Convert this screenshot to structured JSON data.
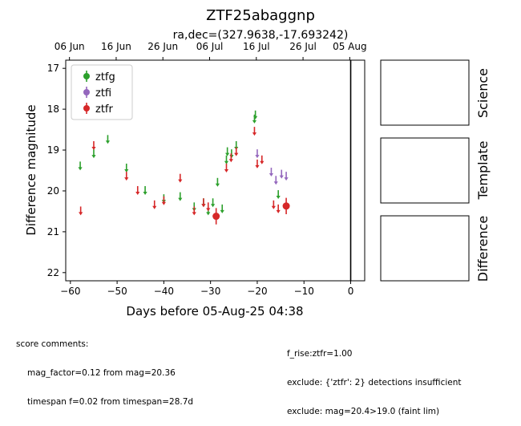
{
  "chart_data": {
    "type": "scatter",
    "title": "ZTF25abaggnp",
    "subtitle": "ra,dec=(327.9638,-17.693242)",
    "xlabel": "Days before 05-Aug-25 04:38",
    "ylabel": "Difference magnitude",
    "xlim": [
      -61,
      3
    ],
    "ylim": [
      22.2,
      16.8
    ],
    "x_ticks": [
      -60,
      -50,
      -40,
      -30,
      -20,
      -10,
      0
    ],
    "y_ticks": [
      17,
      18,
      19,
      20,
      21,
      22
    ],
    "top_axis_ticks": [
      {
        "x": -60.2,
        "label": "06 Jun"
      },
      {
        "x": -50.2,
        "label": "16 Jun"
      },
      {
        "x": -40.2,
        "label": "26 Jun"
      },
      {
        "x": -30.2,
        "label": "06 Jul"
      },
      {
        "x": -20.2,
        "label": "16 Jul"
      },
      {
        "x": -10.2,
        "label": "26 Jul"
      },
      {
        "x": -0.2,
        "label": "05 Aug"
      }
    ],
    "vline_x": 0,
    "legend_position": "upper-left",
    "series": [
      {
        "name": "ztfg",
        "color": "#2ca02c",
        "upper_limits": [
          {
            "x": -57.9,
            "y": 19.4
          },
          {
            "x": -55.0,
            "y": 19.1
          },
          {
            "x": -52.0,
            "y": 18.75
          },
          {
            "x": -48.0,
            "y": 19.45
          },
          {
            "x": -44.0,
            "y": 20.0
          },
          {
            "x": -40.0,
            "y": 20.2
          },
          {
            "x": -36.5,
            "y": 20.15
          },
          {
            "x": -33.5,
            "y": 20.4
          },
          {
            "x": -31.5,
            "y": 20.3
          },
          {
            "x": -30.5,
            "y": 20.5
          },
          {
            "x": -29.5,
            "y": 20.3
          },
          {
            "x": -28.5,
            "y": 19.8
          },
          {
            "x": -27.5,
            "y": 20.45
          },
          {
            "x": -26.6,
            "y": 19.25
          },
          {
            "x": -26.4,
            "y": 19.05
          },
          {
            "x": -25.5,
            "y": 19.1
          },
          {
            "x": -24.5,
            "y": 18.9
          },
          {
            "x": -20.6,
            "y": 18.25
          },
          {
            "x": -20.4,
            "y": 18.15
          },
          {
            "x": -15.5,
            "y": 20.1
          }
        ],
        "detections": []
      },
      {
        "name": "ztfi",
        "color": "#9467bd",
        "upper_limits": [
          {
            "x": -20.0,
            "y": 19.1
          },
          {
            "x": -17.0,
            "y": 19.55
          },
          {
            "x": -16.0,
            "y": 19.75
          },
          {
            "x": -14.8,
            "y": 19.6
          },
          {
            "x": -13.8,
            "y": 19.65
          }
        ],
        "detections": []
      },
      {
        "name": "ztfr",
        "color": "#d62728",
        "upper_limits": [
          {
            "x": -57.8,
            "y": 20.5
          },
          {
            "x": -55.0,
            "y": 18.9
          },
          {
            "x": -48.0,
            "y": 19.65
          },
          {
            "x": -45.6,
            "y": 20.0
          },
          {
            "x": -42.0,
            "y": 20.35
          },
          {
            "x": -40.0,
            "y": 20.25
          },
          {
            "x": -36.5,
            "y": 19.7
          },
          {
            "x": -33.5,
            "y": 20.5
          },
          {
            "x": -31.5,
            "y": 20.3
          },
          {
            "x": -30.5,
            "y": 20.4
          },
          {
            "x": -26.6,
            "y": 19.45
          },
          {
            "x": -25.6,
            "y": 19.2
          },
          {
            "x": -24.5,
            "y": 19.05
          },
          {
            "x": -20.6,
            "y": 18.55
          },
          {
            "x": -20.0,
            "y": 19.35
          },
          {
            "x": -19.0,
            "y": 19.25
          },
          {
            "x": -16.5,
            "y": 20.35
          },
          {
            "x": -15.5,
            "y": 20.45
          }
        ],
        "detections": [
          {
            "x": -28.8,
            "y": 20.62,
            "err": 0.2
          },
          {
            "x": -13.8,
            "y": 20.37,
            "err": 0.2
          }
        ]
      }
    ]
  },
  "cutouts": {
    "science": "Science",
    "template": "Template",
    "difference": "Difference"
  },
  "score_comments": {
    "heading": "score comments:",
    "left": [
      "mag_factor=0.12 from mag=20.36",
      "timespan f=0.02 from timespan=28.7d"
    ],
    "right": [
      "f_rise:ztfr=1.00",
      "exclude: {'ztfr': 2} detections insufficient",
      "exclude: mag=20.4>19.0 (faint lim)"
    ]
  }
}
